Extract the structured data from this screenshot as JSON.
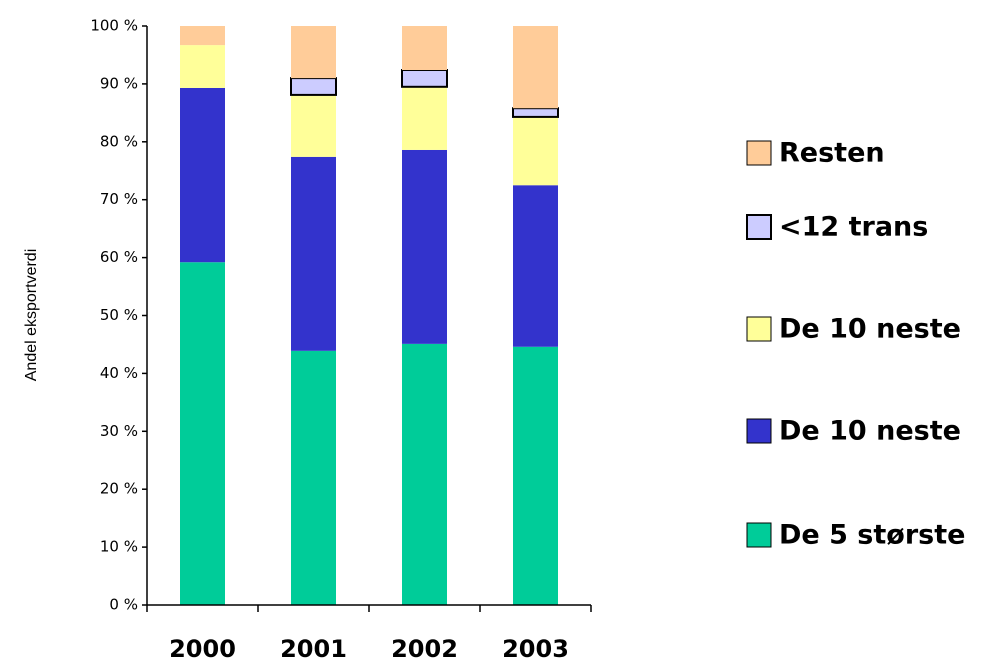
{
  "chart_data": {
    "type": "stacked_bar",
    "y_label": "Andel eksportverdi",
    "categories": [
      "2000",
      "2001",
      "2002",
      "2003"
    ],
    "series": [
      {
        "name": "De 5 største",
        "color": "#00cc99",
        "values": [
          59.2,
          43.9,
          45.1,
          44.6
        ]
      },
      {
        "name": "De 10 neste",
        "color": "#3333cc",
        "values": [
          30.1,
          33.5,
          33.5,
          27.9
        ]
      },
      {
        "name": "De 10 neste",
        "color": "#ffff99",
        "values": [
          7.4,
          10.7,
          10.9,
          11.8
        ]
      },
      {
        "name": "<12 trans",
        "color": "#ccccff",
        "values": [
          0,
          2.9,
          2.9,
          1.5
        ]
      },
      {
        "name": "Resten",
        "color": "#ffcc99",
        "values": [
          3.3,
          9.0,
          7.6,
          14.2
        ]
      }
    ],
    "ylim": [
      0,
      100
    ],
    "yticks": [
      {
        "value": 0,
        "label": "0 %"
      },
      {
        "value": 10,
        "label": "10 %"
      },
      {
        "value": 20,
        "label": "20 %"
      },
      {
        "value": 30,
        "label": "30 %"
      },
      {
        "value": 40,
        "label": "40 %"
      },
      {
        "value": 50,
        "label": "50 %"
      },
      {
        "value": 60,
        "label": "60 %"
      },
      {
        "value": 70,
        "label": "70 %"
      },
      {
        "value": 80,
        "label": "80 %"
      },
      {
        "value": 90,
        "label": "90 %"
      },
      {
        "value": 100,
        "label": "100 %"
      }
    ],
    "legend": "right"
  }
}
